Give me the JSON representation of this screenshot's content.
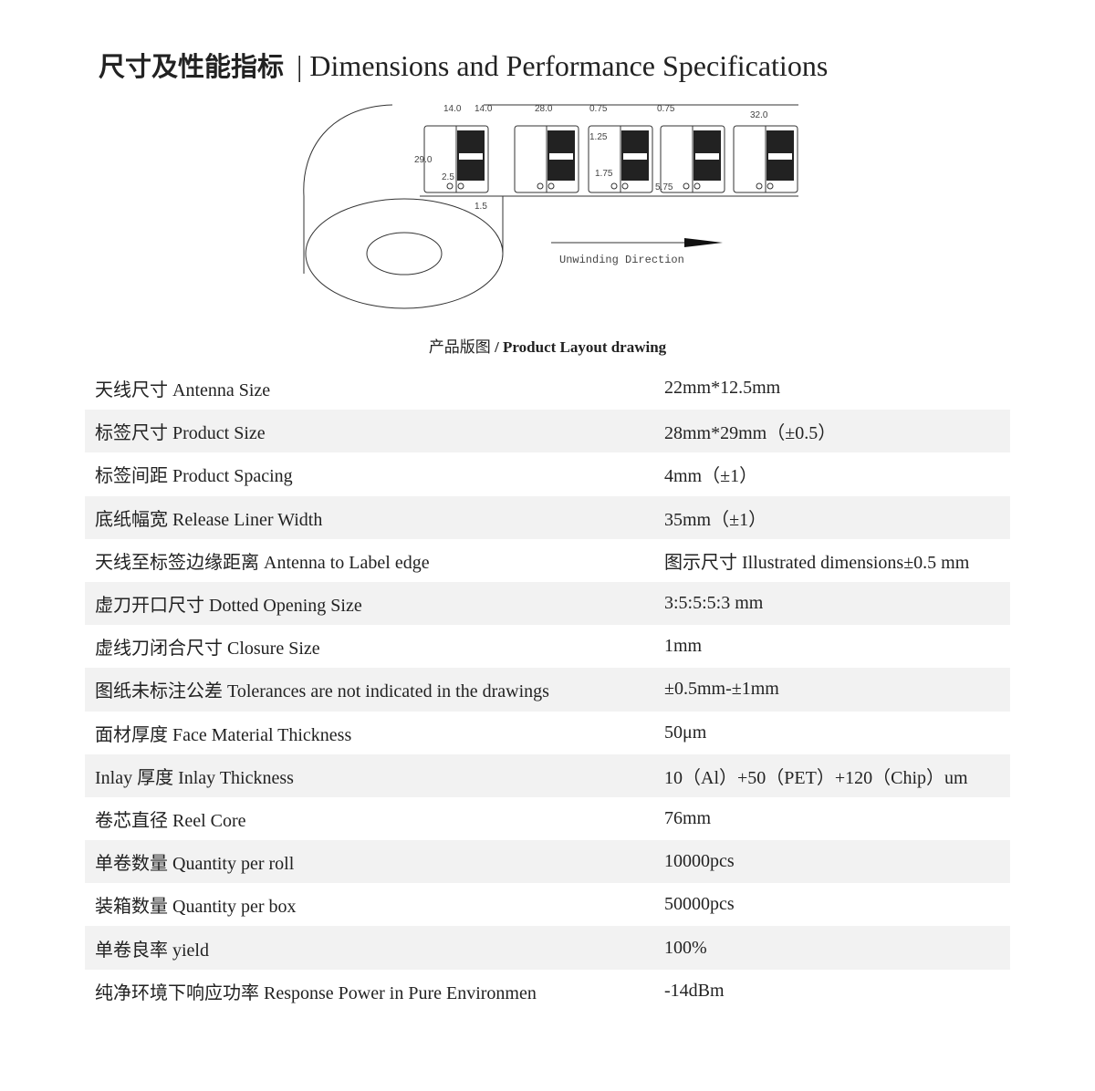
{
  "header": {
    "title_cn": "尺寸及性能指标",
    "separator": "|",
    "title_en": "Dimensions and Performance Specifications"
  },
  "drawing": {
    "dims": [
      "14.0",
      "14.0",
      "28.0",
      "0.75",
      "0.75",
      "32.0",
      "29.0",
      "1.25",
      "2.5",
      "1.75",
      "5.75",
      "1.5"
    ],
    "direction_label": "Unwinding Direction"
  },
  "caption": {
    "cn": "产品版图",
    "en": "/ Product Layout drawing"
  },
  "specs": [
    {
      "label": "天线尺寸  Antenna Size",
      "value": "22mm*12.5mm"
    },
    {
      "label": "标签尺寸  Product Size",
      "value": "28mm*29mm（±0.5）"
    },
    {
      "label": "标签间距  Product Spacing",
      "value": "4mm（±1）"
    },
    {
      "label": "底纸幅宽  Release Liner Width",
      "value": "35mm（±1）"
    },
    {
      "label": "天线至标签边缘距离 Antenna to Label edge",
      "value": "图示尺寸 Illustrated dimensions±0.5 mm"
    },
    {
      "label": "虚刀开口尺寸  Dotted Opening Size",
      "value": "3:5:5:5:3 mm"
    },
    {
      "label": "虚线刀闭合尺寸  Closure Size",
      "value": "1mm"
    },
    {
      "label": "图纸未标注公差  Tolerances are not indicated in the drawings",
      "value": "±0.5mm-±1mm"
    },
    {
      "label": "面材厚度  Face Material Thickness",
      "value": "50μm"
    },
    {
      "label": "Inlay 厚度  Inlay Thickness",
      "value": "10（Al）+50（PET）+120（Chip）um"
    },
    {
      "label": "卷芯直径  Reel Core",
      "value": "76mm"
    },
    {
      "label": "单卷数量  Quantity per roll",
      "value": "10000pcs"
    },
    {
      "label": "装箱数量  Quantity per box",
      "value": "50000pcs"
    },
    {
      "label": "单卷良率  yield",
      "value": "100%"
    },
    {
      "label": "纯净环境下响应功率  Response Power in Pure Environmen",
      "value": "-14dBm"
    }
  ]
}
